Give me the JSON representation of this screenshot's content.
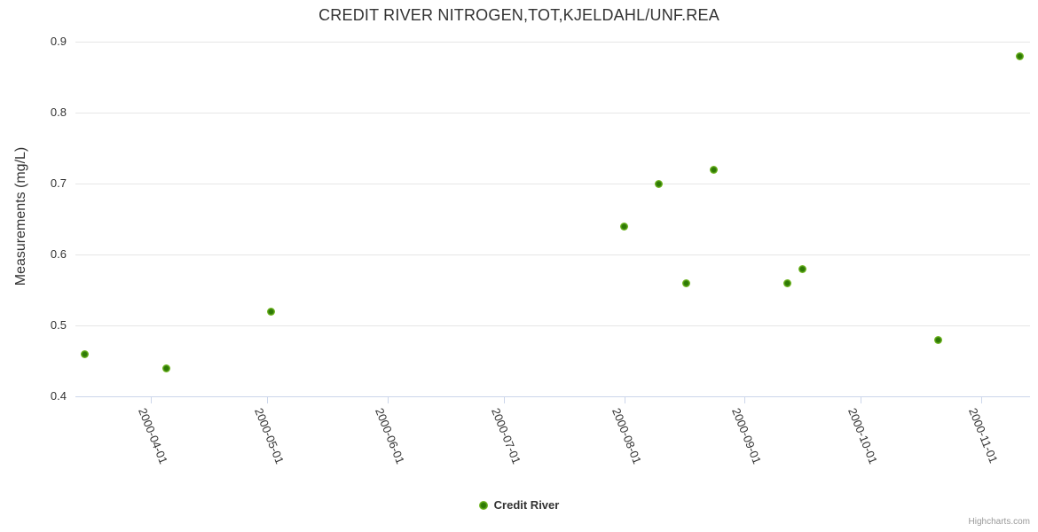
{
  "title": "CREDIT RIVER NITROGEN,TOT,KJELDAHL/UNF.REA",
  "legend": {
    "series_label": "Credit River"
  },
  "credit": "Highcharts.com",
  "colors": {
    "text": "#333333",
    "grid_line": "#e6e6e6",
    "axis_line": "#ccd6eb",
    "marker_core": "#2e7a05",
    "marker_ring": "#72b723",
    "marker_ring_outer": "#85c13b",
    "credit_text": "#999999"
  },
  "chart_data": {
    "type": "scatter",
    "title": "CREDIT RIVER NITROGEN,TOT,KJELDAHL/UNF.REA",
    "xlabel": "",
    "ylabel": "Measurements (mg/L)",
    "ylim": [
      0.4,
      0.9
    ],
    "y_ticks": [
      0.9,
      0.8,
      0.7,
      0.6,
      0.5,
      0.4
    ],
    "x_ticks": [
      "2000-04-01",
      "2000-05-01",
      "2000-06-01",
      "2000-07-01",
      "2000-08-01",
      "2000-09-01",
      "2000-10-01",
      "2000-11-01"
    ],
    "grid": "horizontal-only",
    "legend_position": "bottom-center",
    "series": [
      {
        "name": "Credit River",
        "color": "#72b723",
        "points": [
          {
            "date": "2000-03-15",
            "value": 0.46
          },
          {
            "date": "2000-04-05",
            "value": 0.44
          },
          {
            "date": "2000-05-02",
            "value": 0.52
          },
          {
            "date": "2000-08-01",
            "value": 0.64
          },
          {
            "date": "2000-08-10",
            "value": 0.7
          },
          {
            "date": "2000-08-17",
            "value": 0.56
          },
          {
            "date": "2000-08-24",
            "value": 0.72
          },
          {
            "date": "2000-09-12",
            "value": 0.56
          },
          {
            "date": "2000-09-16",
            "value": 0.58
          },
          {
            "date": "2000-10-21",
            "value": 0.48
          },
          {
            "date": "2000-11-11",
            "value": 0.88
          }
        ]
      }
    ]
  }
}
